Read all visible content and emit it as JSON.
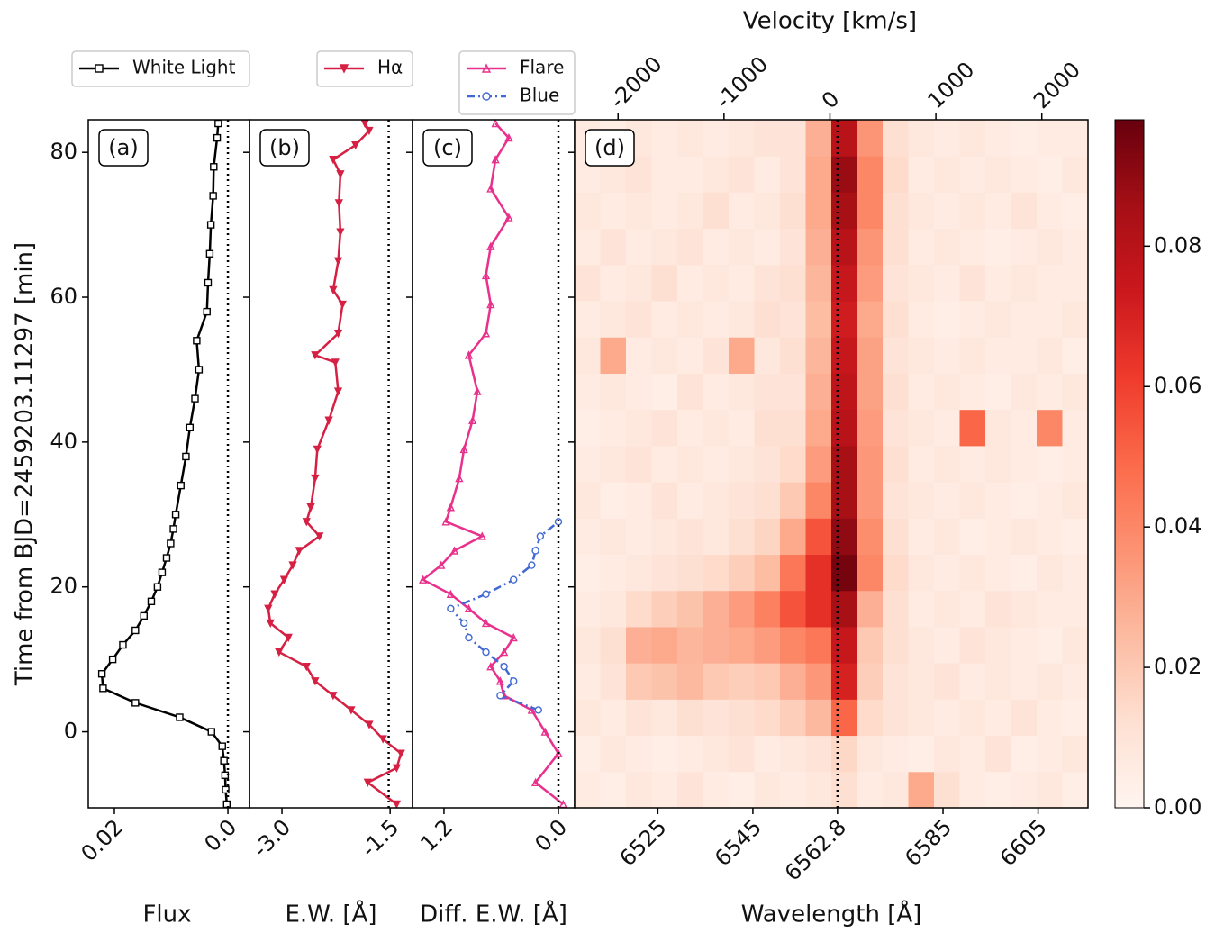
{
  "chart_data": [
    {
      "type": "line",
      "panel_label": "(a)",
      "ylabel": "Time from BJD=2459203.11297 [min]",
      "ylim": [
        -10.5,
        84.5
      ],
      "yticks": [
        0,
        20,
        40,
        60,
        80
      ],
      "xlabel": "Flux",
      "xlim": [
        0.0246,
        -0.0038
      ],
      "xticks": [
        0.02,
        {
          "value": 0,
          "label": "0.0"
        }
      ],
      "reference_x": 0,
      "series": [
        {
          "name": "White Light",
          "color": "#000000",
          "marker": "square",
          "time": [
            -10,
            -8,
            -6,
            -4,
            -2,
            0,
            2,
            4,
            6,
            8,
            10,
            12,
            14,
            16,
            18,
            20,
            22,
            24,
            26,
            28,
            30,
            34,
            38,
            42,
            46,
            50,
            54,
            58,
            62,
            66,
            70,
            74,
            78,
            82,
            84
          ],
          "values": [
            0.0002,
            0.0004,
            0.0005,
            0.0007,
            0.001,
            0.0029,
            0.0085,
            0.0163,
            0.022,
            0.0222,
            0.0203,
            0.0185,
            0.0163,
            0.0148,
            0.0135,
            0.0124,
            0.0116,
            0.0108,
            0.0101,
            0.0096,
            0.0092,
            0.0083,
            0.0074,
            0.0067,
            0.0058,
            0.0051,
            0.0055,
            0.0037,
            0.0035,
            0.0032,
            0.003,
            0.0026,
            0.0025,
            0.0019,
            0.0017
          ]
        }
      ]
    },
    {
      "type": "line",
      "panel_label": "(b)",
      "xlabel": "E.W. [Å]",
      "xlim": [
        -3.45,
        -1.19
      ],
      "xticks": [
        {
          "value": -3,
          "label": "-3.0"
        },
        -1.5
      ],
      "reference_x": -1.52,
      "series": [
        {
          "name": "Hα",
          "color": "#d62043",
          "marker": "triangle-down",
          "time": [
            -10,
            -7,
            -5,
            -3,
            -1,
            1,
            3,
            5,
            7,
            9,
            11,
            13,
            15,
            17,
            19,
            21,
            23,
            25,
            27,
            29,
            31,
            35,
            39,
            43,
            47,
            51,
            52,
            55,
            59,
            61,
            65,
            69,
            73,
            77,
            79,
            81,
            83,
            84
          ],
          "values": [
            -1.41,
            -1.81,
            -1.41,
            -1.35,
            -1.6,
            -1.79,
            -2.04,
            -2.29,
            -2.54,
            -2.66,
            -3.04,
            -2.91,
            -3.16,
            -3.19,
            -3.1,
            -2.97,
            -2.85,
            -2.76,
            -2.48,
            -2.66,
            -2.6,
            -2.54,
            -2.51,
            -2.35,
            -2.22,
            -2.26,
            -2.54,
            -2.22,
            -2.16,
            -2.29,
            -2.22,
            -2.19,
            -2.21,
            -2.19,
            -2.29,
            -1.98,
            -1.79,
            -1.85
          ]
        }
      ]
    },
    {
      "type": "line",
      "panel_label": "(c)",
      "xlabel": "Diff. E.W. [Å]",
      "xlim": [
        1.53,
        -0.17
      ],
      "xticks": [
        1.2,
        {
          "value": 0,
          "label": "0.0"
        }
      ],
      "reference_x": 0,
      "series": [
        {
          "name": "Flare",
          "color": "#e8308c",
          "marker": "triangle-up",
          "time": [
            -10,
            -7,
            -3,
            0,
            3,
            5,
            7,
            9,
            11,
            13,
            15,
            17,
            19,
            21,
            23,
            25,
            27,
            29,
            31,
            35,
            39,
            43,
            47,
            52,
            55,
            59,
            63,
            67,
            71,
            75,
            79,
            82,
            84
          ],
          "values": [
            -0.05,
            0.24,
            0,
            0.14,
            0.28,
            0.57,
            0.61,
            0.71,
            0.57,
            0.47,
            0.76,
            0.94,
            1.13,
            1.42,
            1.23,
            1.09,
            0.8,
            1.18,
            1.13,
            1.04,
            0.99,
            0.9,
            0.85,
            0.94,
            0.76,
            0.71,
            0.76,
            0.71,
            0.52,
            0.71,
            0.66,
            0.52,
            0.66
          ]
        },
        {
          "name": "Blue",
          "color": "#4169d4",
          "marker": "circle",
          "dash": "dash-dot",
          "time": [
            3,
            5,
            7,
            9,
            11,
            13,
            15,
            17,
            19,
            21,
            23,
            25,
            27,
            29
          ],
          "values": [
            0.21,
            0.61,
            0.47,
            0.57,
            0.76,
            0.94,
            0.99,
            1.13,
            0.76,
            0.47,
            0.28,
            0.24,
            0.19,
            0
          ]
        }
      ]
    },
    {
      "type": "heatmap",
      "panel_label": "(d)",
      "xlabel": "Wavelength [Å]",
      "xlim": [
        6507.5,
        6615.5
      ],
      "xticks": [
        6525,
        6545,
        6562.8,
        6585,
        6605
      ],
      "reference_x": 6562.8,
      "x2label": "Velocity [km/s]",
      "x2lim": [
        -2410,
        2436
      ],
      "x2ticks": [
        -2000,
        -1000,
        0,
        1000,
        2000
      ],
      "colormap": "Reds",
      "clim": [
        0,
        0.098
      ],
      "cticks": [
        {
          "value": 0,
          "label": "0.00"
        },
        0.02,
        0.04,
        0.06,
        0.08
      ],
      "xbins": [
        6507.5,
        6512.9,
        6518.3,
        6523.7,
        6529.1,
        6534.5,
        6539.9,
        6545.3,
        6550.7,
        6556.1,
        6561.5,
        6566.9,
        6572.3,
        6577.7,
        6583.1,
        6588.5,
        6593.9,
        6599.3,
        6604.7,
        6610.1,
        6615.5
      ],
      "ybins": [
        -10.5,
        -5.5,
        -0.5,
        4.5,
        9.5,
        14.5,
        19.5,
        24.5,
        29.5,
        34.5,
        39.5,
        44.5,
        49.5,
        54.5,
        59.5,
        64.5,
        69.5,
        74.5,
        79.5,
        84.5
      ],
      "values": [
        [
          0.006,
          0.004,
          0.008,
          0.006,
          0.01,
          0.006,
          0.004,
          0.008,
          0.006,
          0.008,
          0.012,
          0.006,
          0.008,
          0.03,
          0.012,
          0.006,
          0.004,
          0.006,
          0.008,
          0.004
        ],
        [
          0.004,
          0.008,
          0.006,
          0.004,
          0.006,
          0.008,
          0.01,
          0.006,
          0.008,
          0.01,
          0.015,
          0.008,
          0.006,
          0.004,
          0.008,
          0.006,
          0.01,
          0.004,
          0.006,
          0.008
        ],
        [
          0.008,
          0.006,
          0.01,
          0.008,
          0.012,
          0.01,
          0.012,
          0.014,
          0.018,
          0.025,
          0.05,
          0.014,
          0.01,
          0.008,
          0.006,
          0.008,
          0.006,
          0.01,
          0.006,
          0.004
        ],
        [
          0.006,
          0.01,
          0.02,
          0.022,
          0.025,
          0.02,
          0.018,
          0.02,
          0.028,
          0.035,
          0.07,
          0.018,
          0.01,
          0.008,
          0.01,
          0.006,
          0.008,
          0.006,
          0.008,
          0.006
        ],
        [
          0.008,
          0.012,
          0.028,
          0.03,
          0.026,
          0.028,
          0.03,
          0.034,
          0.04,
          0.045,
          0.075,
          0.02,
          0.012,
          0.008,
          0.006,
          0.01,
          0.008,
          0.006,
          0.004,
          0.008
        ],
        [
          0.006,
          0.008,
          0.014,
          0.018,
          0.022,
          0.028,
          0.034,
          0.042,
          0.055,
          0.065,
          0.085,
          0.028,
          0.012,
          0.006,
          0.008,
          0.006,
          0.01,
          0.008,
          0.006,
          0.006
        ],
        [
          0.004,
          0.006,
          0.008,
          0.01,
          0.012,
          0.014,
          0.018,
          0.024,
          0.045,
          0.065,
          0.095,
          0.04,
          0.014,
          0.008,
          0.006,
          0.008,
          0.006,
          0.004,
          0.008,
          0.006
        ],
        [
          0.006,
          0.008,
          0.006,
          0.008,
          0.01,
          0.008,
          0.012,
          0.016,
          0.03,
          0.055,
          0.09,
          0.038,
          0.012,
          0.006,
          0.008,
          0.004,
          0.006,
          0.008,
          0.006,
          0.004
        ],
        [
          0.008,
          0.004,
          0.006,
          0.01,
          0.006,
          0.008,
          0.01,
          0.012,
          0.02,
          0.04,
          0.085,
          0.035,
          0.01,
          0.008,
          0.006,
          0.008,
          0.006,
          0.004,
          0.006,
          0.008
        ],
        [
          0.006,
          0.008,
          0.01,
          0.006,
          0.008,
          0.006,
          0.008,
          0.01,
          0.014,
          0.034,
          0.085,
          0.035,
          0.012,
          0.006,
          0.008,
          0.006,
          0.008,
          0.006,
          0.004,
          0.006
        ],
        [
          0.004,
          0.006,
          0.008,
          0.01,
          0.006,
          0.008,
          0.006,
          0.012,
          0.012,
          0.03,
          0.08,
          0.034,
          0.01,
          0.008,
          0.006,
          0.05,
          0.008,
          0.006,
          0.04,
          0.006
        ],
        [
          0.006,
          0.008,
          0.006,
          0.004,
          0.01,
          0.006,
          0.008,
          0.01,
          0.01,
          0.028,
          0.078,
          0.032,
          0.012,
          0.006,
          0.008,
          0.006,
          0.004,
          0.008,
          0.006,
          0.008
        ],
        [
          0.008,
          0.03,
          0.006,
          0.008,
          0.006,
          0.01,
          0.03,
          0.008,
          0.012,
          0.026,
          0.075,
          0.032,
          0.01,
          0.008,
          0.006,
          0.008,
          0.006,
          0.006,
          0.008,
          0.004
        ],
        [
          0.006,
          0.008,
          0.01,
          0.006,
          0.008,
          0.006,
          0.008,
          0.012,
          0.01,
          0.024,
          0.072,
          0.03,
          0.012,
          0.006,
          0.004,
          0.006,
          0.008,
          0.006,
          0.006,
          0.008
        ],
        [
          0.01,
          0.006,
          0.008,
          0.012,
          0.006,
          0.008,
          0.006,
          0.01,
          0.012,
          0.026,
          0.075,
          0.034,
          0.01,
          0.008,
          0.006,
          0.01,
          0.006,
          0.008,
          0.006,
          0.006
        ],
        [
          0.006,
          0.01,
          0.006,
          0.008,
          0.01,
          0.006,
          0.008,
          0.006,
          0.01,
          0.028,
          0.08,
          0.036,
          0.012,
          0.006,
          0.008,
          0.006,
          0.004,
          0.006,
          0.008,
          0.006
        ],
        [
          0.008,
          0.006,
          0.008,
          0.006,
          0.008,
          0.012,
          0.006,
          0.008,
          0.012,
          0.03,
          0.085,
          0.04,
          0.012,
          0.008,
          0.006,
          0.008,
          0.006,
          0.01,
          0.006,
          0.004
        ],
        [
          0.006,
          0.008,
          0.01,
          0.006,
          0.006,
          0.008,
          0.01,
          0.006,
          0.01,
          0.03,
          0.088,
          0.04,
          0.014,
          0.006,
          0.008,
          0.006,
          0.008,
          0.006,
          0.004,
          0.008
        ],
        [
          0.006,
          0.004,
          0.008,
          0.006,
          0.008,
          0.006,
          0.008,
          0.01,
          0.01,
          0.028,
          0.08,
          0.036,
          0.012,
          0.008,
          0.006,
          0.008,
          0.006,
          0.004,
          0.006,
          0.006
        ]
      ]
    }
  ]
}
